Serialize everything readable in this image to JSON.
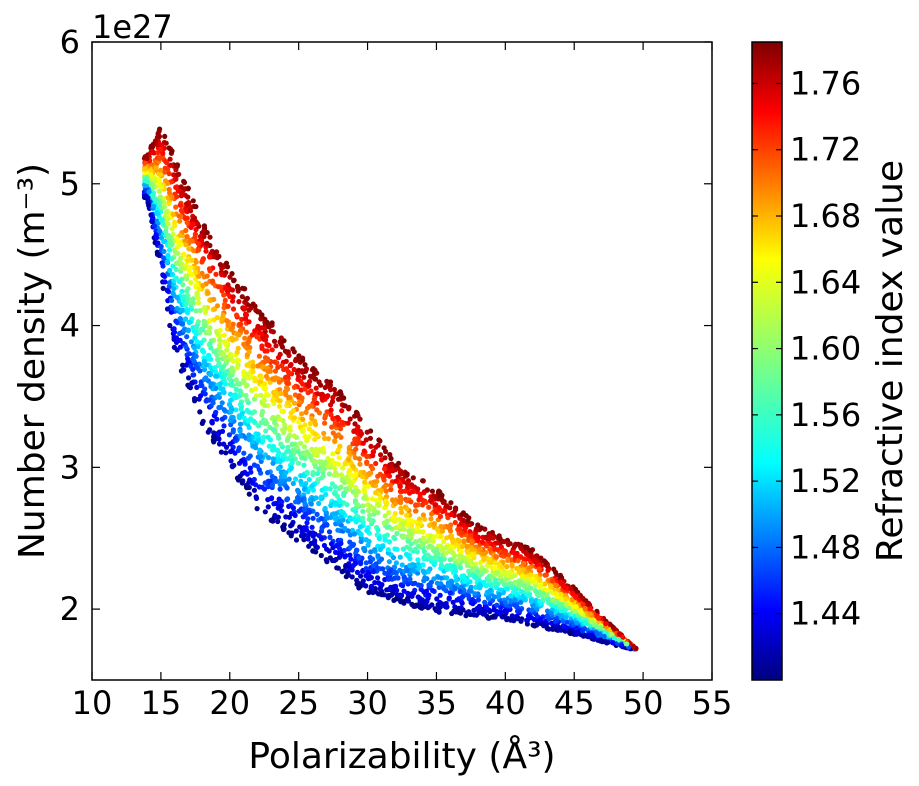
{
  "chart_data": {
    "type": "scatter",
    "title": "",
    "xlabel": "Polarizability (Å³)",
    "ylabel": "Number density (m⁻³)",
    "y_offset_label": "1e27",
    "xlim": [
      10,
      55
    ],
    "ylim": [
      1.5,
      6
    ],
    "y_scale_factor": 1e+27,
    "x_ticks": [
      "10",
      "15",
      "20",
      "25",
      "30",
      "35",
      "40",
      "45",
      "50",
      "55"
    ],
    "y_ticks": [
      "2",
      "3",
      "4",
      "5",
      "6"
    ],
    "grid": false,
    "colormap": "jet",
    "colorbar": {
      "label": "Refractive index value",
      "min": 1.4,
      "max": 1.785,
      "ticks": [
        "1.44",
        "1.48",
        "1.52",
        "1.56",
        "1.60",
        "1.64",
        "1.68",
        "1.72",
        "1.76"
      ]
    },
    "series": [
      {
        "x_range": [
          13.8,
          49.5
        ],
        "y_density_lower": [
          [
            14,
            4.9
          ],
          [
            16,
            3.8
          ],
          [
            18,
            3.3
          ],
          [
            20,
            3.0
          ],
          [
            22,
            2.7
          ],
          [
            24,
            2.55
          ],
          [
            26,
            2.4
          ],
          [
            28,
            2.25
          ],
          [
            30,
            2.1
          ],
          [
            32,
            2.05
          ],
          [
            35,
            1.98
          ],
          [
            40,
            1.92
          ],
          [
            45,
            1.82
          ],
          [
            49,
            1.72
          ]
        ],
        "y_density_upper": [
          [
            14,
            5.2
          ],
          [
            15,
            5.42
          ],
          [
            16,
            5.2
          ],
          [
            18,
            4.75
          ],
          [
            20,
            4.4
          ],
          [
            22,
            4.15
          ],
          [
            25,
            3.8
          ],
          [
            28,
            3.55
          ],
          [
            30,
            3.3
          ],
          [
            32,
            3.05
          ],
          [
            35,
            2.85
          ],
          [
            38,
            2.6
          ],
          [
            40,
            2.5
          ],
          [
            42,
            2.42
          ],
          [
            45,
            2.15
          ],
          [
            47,
            1.95
          ],
          [
            49.5,
            1.72
          ]
        ],
        "refractive_index_range": [
          1.4,
          1.785
        ]
      }
    ]
  }
}
